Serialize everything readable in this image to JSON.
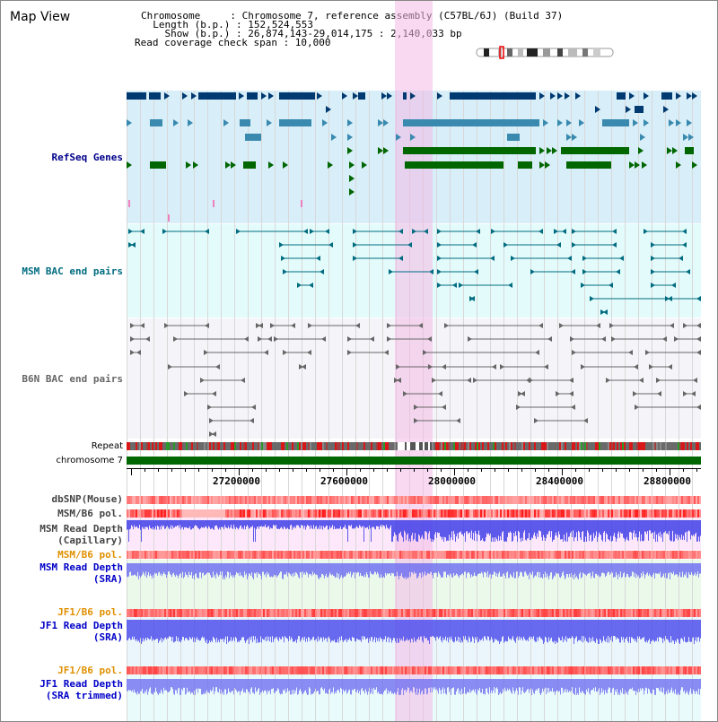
{
  "header": {
    "title": "Map View",
    "chromosome_line": "Chromosome     : Chromosome 7, reference assembly (C57BL/6J) (Build 37)",
    "length_line": "  Length (b.p.) : 152,524,553",
    "show_line": "    Show (b.p.) : 26,874,143-29,014,175 : 2,140,033 bp",
    "coverage_line": "Read coverage check span : 10,000"
  },
  "tracks": {
    "refseq": "RefSeq Genes",
    "msm_bac": "MSM BAC end pairs",
    "b6n_bac": "B6N BAC end pairs",
    "repeat": "Repeat",
    "chromosome": "chromosome 7",
    "dbsnp": "dbSNP(Mouse)",
    "msm_pol1": "MSM/B6 pol.",
    "msm_depth_cap": "MSM Read Depth",
    "msm_depth_cap_sub": "(Capillary)",
    "msm_pol2": "MSM/B6 pol.",
    "msm_depth_sra": "MSM Read Depth",
    "msm_depth_sra_sub": "(SRA)",
    "jf1_pol1": "JF1/B6 pol.",
    "jf1_depth_sra": "JF1 Read Depth",
    "jf1_depth_sra_sub": "(SRA)",
    "jf1_pol2": "JF1/B6 pol.",
    "jf1_depth_trim": "JF1 Read Depth",
    "jf1_depth_trim_sub": "(SRA trimmed)"
  },
  "axis": {
    "ticks": [
      "27200000",
      "27600000",
      "28000000",
      "28400000",
      "28800000"
    ]
  },
  "colors": {
    "refseq_bg": "#d8eef8",
    "msm_bg": "#e4fbfb",
    "highlight": "#f7cfee",
    "gene_dark": "#003a70",
    "gene_mid": "#3a8ab0",
    "gene_green": "#006600",
    "chrom": "#006600"
  }
}
